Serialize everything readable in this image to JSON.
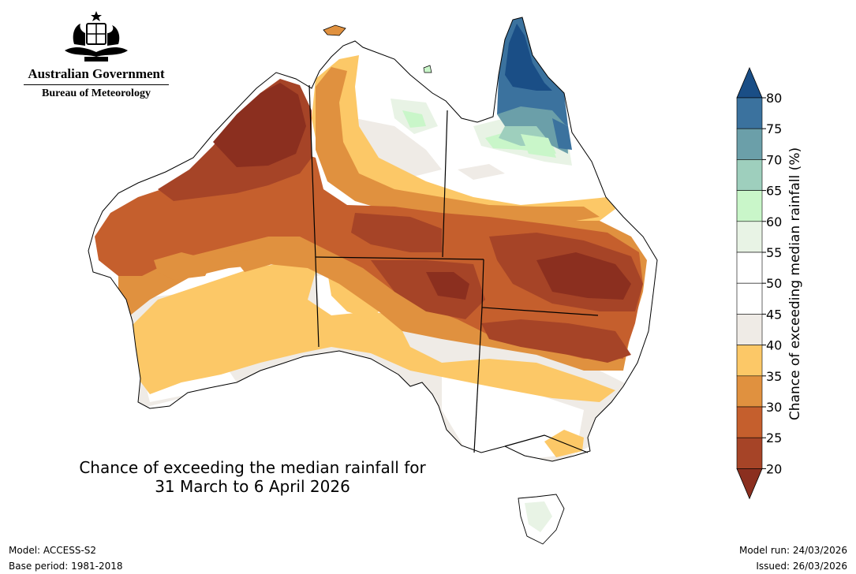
{
  "logo": {
    "government": "Australian Government",
    "agency": "Bureau of Meteorology",
    "icon": "coat-of-arms-icon"
  },
  "title": {
    "line1": "Chance of exceeding the median rainfall for",
    "line2": "31 March to 6 April 2026"
  },
  "footer": {
    "model": "Model: ACCESS-S2",
    "base_period": "Base period: 1981-2018",
    "model_run": "Model run: 24/03/2026",
    "issued": "Issued: 26/03/2026"
  },
  "colorbar": {
    "label": "Chance of exceeding median rainfall (%)",
    "ticks": [
      "80",
      "75",
      "70",
      "65",
      "60",
      "55",
      "50",
      "45",
      "40",
      "35",
      "30",
      "25",
      "20"
    ],
    "bins": [
      {
        "range": "80+",
        "color": "#1a4e86"
      },
      {
        "range": "75-80",
        "color": "#3b729e"
      },
      {
        "range": "70-75",
        "color": "#6b9fa9"
      },
      {
        "range": "65-70",
        "color": "#9ecfbd"
      },
      {
        "range": "60-65",
        "color": "#c9f6c9"
      },
      {
        "range": "55-60",
        "color": "#e8f3e5"
      },
      {
        "range": "50-55",
        "color": "#ffffff"
      },
      {
        "range": "45-50",
        "color": "#ffffff"
      },
      {
        "range": "40-45",
        "color": "#efebe6"
      },
      {
        "range": "35-40",
        "color": "#fcc867"
      },
      {
        "range": "30-35",
        "color": "#e0913f"
      },
      {
        "range": "25-30",
        "color": "#c55f2d"
      },
      {
        "range": "20-25",
        "color": "#a64427"
      },
      {
        "range": "<20",
        "color": "#8b2f1f"
      }
    ]
  }
}
